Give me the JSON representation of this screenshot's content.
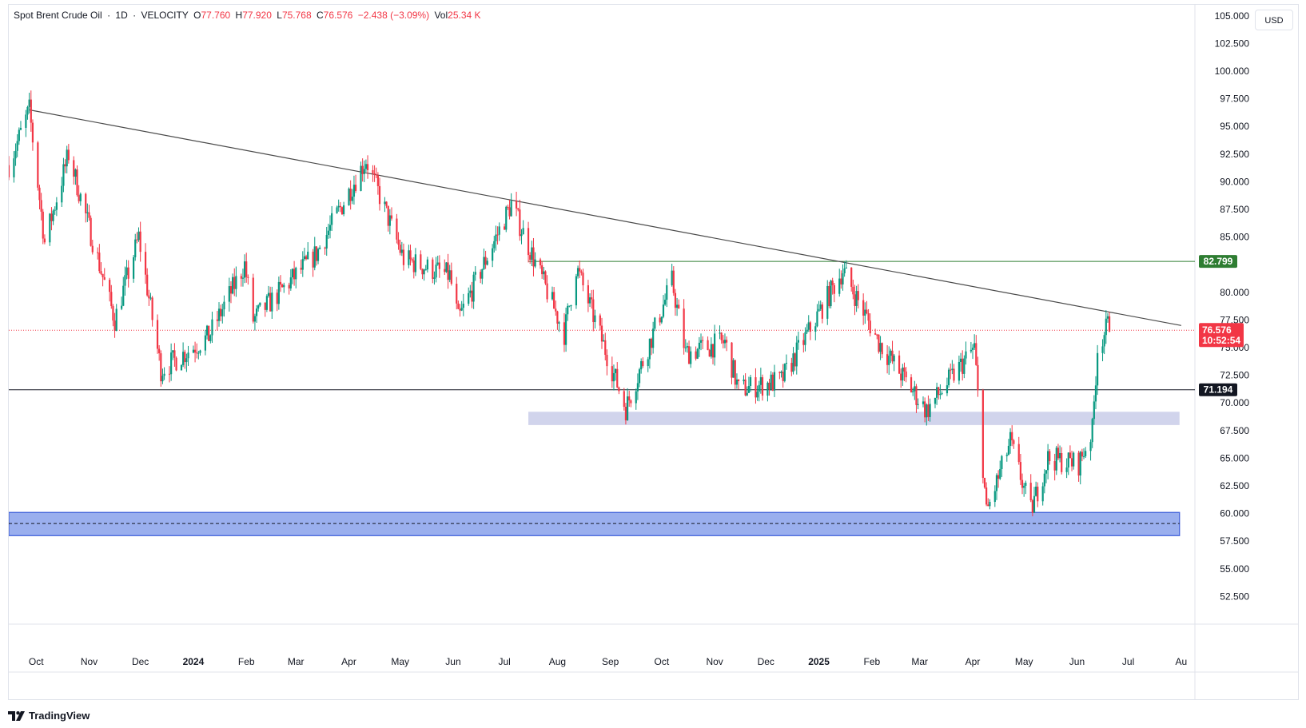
{
  "header": {
    "symbol": "Spot Brent Crude Oil",
    "sep1": "·",
    "interval": "1D",
    "sep2": "·",
    "source": "VELOCITY",
    "open_label": "O",
    "open": "77.760",
    "high_label": "H",
    "high": "77.920",
    "low_label": "L",
    "low": "75.768",
    "close_label": "C",
    "close": "76.576",
    "change": "−2.438 (−3.09%)",
    "vol_label": "Vol",
    "vol": "25.34 K"
  },
  "currency": "USD",
  "brand": "TradingView",
  "colors": {
    "up": "#089981",
    "down": "#f23645",
    "zone_light": "#d1d4ec",
    "zone_dark": "#8fa6ec",
    "resistance": "#2e7d32"
  },
  "chart_data": {
    "type": "candlestick",
    "ylim": [
      50,
      106
    ],
    "y_ticks": [
      52.5,
      55,
      57.5,
      60,
      62.5,
      65,
      67.5,
      70,
      72.5,
      75,
      77.5,
      80,
      85,
      87.5,
      90,
      92.5,
      95,
      97.5,
      100,
      102.5,
      105
    ],
    "y_tick_labels": [
      "52.500",
      "55.000",
      "57.500",
      "60.000",
      "62.500",
      "65.000",
      "67.500",
      "70.000",
      "72.500",
      "75.000",
      "77.500",
      "80.000",
      "85.000",
      "87.500",
      "90.000",
      "92.500",
      "95.000",
      "97.500",
      "100.000",
      "102.500",
      "105.000"
    ],
    "x_axis": [
      {
        "date": "2023-10-01",
        "label": "Oct",
        "bold": false
      },
      {
        "date": "2023-11-01",
        "label": "Nov",
        "bold": false
      },
      {
        "date": "2023-12-01",
        "label": "Dec",
        "bold": false
      },
      {
        "date": "2024-01-01",
        "label": "2024",
        "bold": true
      },
      {
        "date": "2024-02-01",
        "label": "Feb",
        "bold": false
      },
      {
        "date": "2024-03-01",
        "label": "Mar",
        "bold": false
      },
      {
        "date": "2024-04-01",
        "label": "Apr",
        "bold": false
      },
      {
        "date": "2024-05-01",
        "label": "May",
        "bold": false
      },
      {
        "date": "2024-06-01",
        "label": "Jun",
        "bold": false
      },
      {
        "date": "2024-07-01",
        "label": "Jul",
        "bold": false
      },
      {
        "date": "2024-08-01",
        "label": "Aug",
        "bold": false
      },
      {
        "date": "2024-09-01",
        "label": "Sep",
        "bold": false
      },
      {
        "date": "2024-10-01",
        "label": "Oct",
        "bold": false
      },
      {
        "date": "2024-11-01",
        "label": "Nov",
        "bold": false
      },
      {
        "date": "2024-12-01",
        "label": "Dec",
        "bold": false
      },
      {
        "date": "2025-01-01",
        "label": "2025",
        "bold": true
      },
      {
        "date": "2025-02-01",
        "label": "Feb",
        "bold": false
      },
      {
        "date": "2025-03-01",
        "label": "Mar",
        "bold": false
      },
      {
        "date": "2025-04-01",
        "label": "Apr",
        "bold": false
      },
      {
        "date": "2025-05-01",
        "label": "May",
        "bold": false
      },
      {
        "date": "2025-06-01",
        "label": "Jun",
        "bold": false
      },
      {
        "date": "2025-07-01",
        "label": "Jul",
        "bold": false
      },
      {
        "date": "2025-08-01",
        "label": "Au",
        "bold": false
      }
    ],
    "price_path": [
      {
        "date": "2023-09-15",
        "price": 91.5
      },
      {
        "date": "2023-09-27",
        "price": 96.5
      },
      {
        "date": "2023-10-06",
        "price": 84.5
      },
      {
        "date": "2023-10-20",
        "price": 92.5
      },
      {
        "date": "2023-11-16",
        "price": 77.5
      },
      {
        "date": "2023-11-30",
        "price": 85.0
      },
      {
        "date": "2023-12-13",
        "price": 73.0
      },
      {
        "date": "2024-01-10",
        "price": 76.0
      },
      {
        "date": "2024-01-31",
        "price": 82.5
      },
      {
        "date": "2024-02-05",
        "price": 77.5
      },
      {
        "date": "2024-03-13",
        "price": 83.5
      },
      {
        "date": "2024-04-11",
        "price": 92.0
      },
      {
        "date": "2024-05-03",
        "price": 83.0
      },
      {
        "date": "2024-05-30",
        "price": 81.5
      },
      {
        "date": "2024-06-04",
        "price": 77.5
      },
      {
        "date": "2024-07-05",
        "price": 88.0
      },
      {
        "date": "2024-08-05",
        "price": 76.3
      },
      {
        "date": "2024-08-12",
        "price": 82.3
      },
      {
        "date": "2024-09-10",
        "price": 69.5
      },
      {
        "date": "2024-10-07",
        "price": 81.0
      },
      {
        "date": "2024-10-15",
        "price": 74.5
      },
      {
        "date": "2024-11-07",
        "price": 75.5
      },
      {
        "date": "2024-11-15",
        "price": 71.2
      },
      {
        "date": "2024-12-10",
        "price": 72.0
      },
      {
        "date": "2025-01-15",
        "price": 82.0
      },
      {
        "date": "2025-02-05",
        "price": 75.5
      },
      {
        "date": "2025-03-05",
        "price": 69.3
      },
      {
        "date": "2025-04-02",
        "price": 75.0
      },
      {
        "date": "2025-04-09",
        "price": 60.0
      },
      {
        "date": "2025-04-23",
        "price": 66.5
      },
      {
        "date": "2025-05-05",
        "price": 60.2
      },
      {
        "date": "2025-05-15",
        "price": 65.0
      },
      {
        "date": "2025-06-02",
        "price": 64.5
      },
      {
        "date": "2025-06-10",
        "price": 67.5
      },
      {
        "date": "2025-06-13",
        "price": 75.0
      },
      {
        "date": "2025-06-20",
        "price": 77.3
      },
      {
        "date": "2025-06-23",
        "price": 76.6
      }
    ],
    "trendline": {
      "start_date": "2023-09-27",
      "start_price": 96.5,
      "end_date": "2025-08-01",
      "end_price": 77.0
    },
    "lines": [
      {
        "name": "resistance",
        "price": 82.799,
        "label": "82.799",
        "start_date": "2024-07-15",
        "color": "#2e7d32",
        "badge_bg": "#2e7d32"
      },
      {
        "name": "support",
        "price": 71.194,
        "label": "71.194",
        "start_date": "2023-09-15",
        "color": "#131722",
        "badge_bg": "#131722"
      }
    ],
    "zones": [
      {
        "name": "demand-zone-upper",
        "start_date": "2024-07-15",
        "end_date": "2025-07-31",
        "low": 68.0,
        "high": 69.2,
        "color": "#d1d4ec"
      },
      {
        "name": "demand-zone-lower",
        "start_date": "2023-09-15",
        "end_date": "2025-07-31",
        "low": 58.0,
        "high": 60.1,
        "mid": 59.1,
        "color": "#8fa6ec"
      }
    ],
    "current_price": {
      "value": "76.576",
      "countdown": "10:52:54",
      "color": "#f23645"
    }
  }
}
